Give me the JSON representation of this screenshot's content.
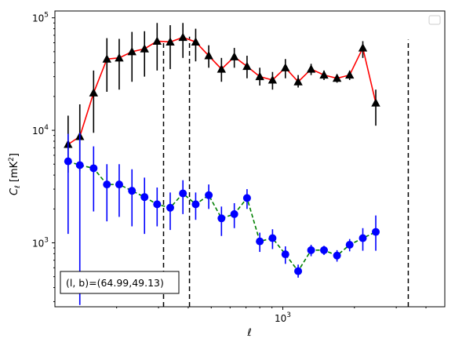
{
  "chart_data": {
    "type": "line",
    "xscale": "log",
    "yscale": "log",
    "xlim": [
      110,
      4800
    ],
    "ylim": [
      270,
      115000
    ],
    "xlabel": "ℓ",
    "ylabel": "C_ℓ  [mK²]",
    "x_ticks": [
      {
        "value": 1000,
        "label": "10^3"
      }
    ],
    "y_ticks": [
      {
        "value": 1000,
        "label": "10^3"
      },
      {
        "value": 10000,
        "label": "10^4"
      },
      {
        "value": 100000,
        "label": "10^5"
      }
    ],
    "grid": false,
    "legend": {
      "placement": "top-right",
      "entries": []
    },
    "annotation": {
      "text": "(l, b)=(64.99,49.13)",
      "placement": "bottom-left"
    },
    "vlines": [
      {
        "x": 315,
        "y": [
          270,
          62000
        ],
        "style": "dashed"
      },
      {
        "x": 405,
        "y": [
          270,
          68000
        ],
        "style": "dashed"
      },
      {
        "x": 3370,
        "y": [
          270,
          64000
        ],
        "style": "dashed"
      }
    ],
    "series": [
      {
        "color": "#ff0000",
        "line": "solid",
        "marker": "triangle",
        "marker_color": "#000000",
        "errorbar_color": "#000000",
        "points": [
          {
            "x": 125,
            "y": 7500,
            "lo": 4200,
            "hi": 13500
          },
          {
            "x": 140,
            "y": 8800,
            "lo": 4300,
            "hi": 17000
          },
          {
            "x": 160,
            "y": 21500,
            "lo": 9500,
            "hi": 34000
          },
          {
            "x": 182,
            "y": 43000,
            "lo": 22000,
            "hi": 66000
          },
          {
            "x": 205,
            "y": 44000,
            "lo": 23000,
            "hi": 65000
          },
          {
            "x": 232,
            "y": 50000,
            "lo": 27000,
            "hi": 75000
          },
          {
            "x": 262,
            "y": 53000,
            "lo": 30000,
            "hi": 76000
          },
          {
            "x": 296,
            "y": 62000,
            "lo": 34000,
            "hi": 90000
          },
          {
            "x": 336,
            "y": 61000,
            "lo": 35000,
            "hi": 86000
          },
          {
            "x": 380,
            "y": 67000,
            "lo": 44000,
            "hi": 90000
          },
          {
            "x": 430,
            "y": 61000,
            "lo": 41000,
            "hi": 80000
          },
          {
            "x": 488,
            "y": 46000,
            "lo": 36000,
            "hi": 57000
          },
          {
            "x": 552,
            "y": 35000,
            "lo": 27000,
            "hi": 44000
          },
          {
            "x": 625,
            "y": 45000,
            "lo": 36000,
            "hi": 54000
          },
          {
            "x": 707,
            "y": 37000,
            "lo": 29000,
            "hi": 46000
          },
          {
            "x": 800,
            "y": 30000,
            "lo": 25000,
            "hi": 36000
          },
          {
            "x": 905,
            "y": 28000,
            "lo": 23000,
            "hi": 33000
          },
          {
            "x": 1025,
            "y": 36000,
            "lo": 29000,
            "hi": 43000
          },
          {
            "x": 1160,
            "y": 27000,
            "lo": 24000,
            "hi": 31000
          },
          {
            "x": 1315,
            "y": 35000,
            "lo": 31000,
            "hi": 39000
          },
          {
            "x": 1490,
            "y": 31000,
            "lo": 28000,
            "hi": 34000
          },
          {
            "x": 1690,
            "y": 29000,
            "lo": 26500,
            "hi": 31500
          },
          {
            "x": 1910,
            "y": 31000,
            "lo": 28000,
            "hi": 34000
          },
          {
            "x": 2170,
            "y": 54000,
            "lo": 44000,
            "hi": 62000
          },
          {
            "x": 2460,
            "y": 17500,
            "lo": 11000,
            "hi": 23000
          }
        ]
      },
      {
        "color": "#008000",
        "line": "dashed",
        "marker": "circle",
        "marker_color": "#0000ff",
        "errorbar_color": "#0000ff",
        "points": [
          {
            "x": 125,
            "y": 5300,
            "lo": 1200,
            "hi": 9300
          },
          {
            "x": 140,
            "y": 4900,
            "lo": 280,
            "hi": 9500
          },
          {
            "x": 160,
            "y": 4600,
            "lo": 1900,
            "hi": 7200
          },
          {
            "x": 182,
            "y": 3300,
            "lo": 1550,
            "hi": 5000
          },
          {
            "x": 205,
            "y": 3300,
            "lo": 1700,
            "hi": 5000
          },
          {
            "x": 232,
            "y": 2900,
            "lo": 1400,
            "hi": 4500
          },
          {
            "x": 262,
            "y": 2550,
            "lo": 1200,
            "hi": 3800
          },
          {
            "x": 296,
            "y": 2200,
            "lo": 1400,
            "hi": 3100
          },
          {
            "x": 336,
            "y": 2050,
            "lo": 1300,
            "hi": 2800
          },
          {
            "x": 380,
            "y": 2750,
            "lo": 1800,
            "hi": 3600
          },
          {
            "x": 430,
            "y": 2200,
            "lo": 1600,
            "hi": 2800
          },
          {
            "x": 488,
            "y": 2650,
            "lo": 2000,
            "hi": 3300
          },
          {
            "x": 552,
            "y": 1650,
            "lo": 1150,
            "hi": 2100
          },
          {
            "x": 625,
            "y": 1800,
            "lo": 1350,
            "hi": 2250
          },
          {
            "x": 707,
            "y": 2500,
            "lo": 2000,
            "hi": 3000
          },
          {
            "x": 800,
            "y": 1030,
            "lo": 830,
            "hi": 1230
          },
          {
            "x": 905,
            "y": 1100,
            "lo": 880,
            "hi": 1320
          },
          {
            "x": 1025,
            "y": 790,
            "lo": 650,
            "hi": 930
          },
          {
            "x": 1160,
            "y": 560,
            "lo": 490,
            "hi": 640
          },
          {
            "x": 1315,
            "y": 860,
            "lo": 760,
            "hi": 960
          },
          {
            "x": 1490,
            "y": 860,
            "lo": 780,
            "hi": 940
          },
          {
            "x": 1690,
            "y": 770,
            "lo": 680,
            "hi": 860
          },
          {
            "x": 1910,
            "y": 960,
            "lo": 840,
            "hi": 1080
          },
          {
            "x": 2170,
            "y": 1100,
            "lo": 850,
            "hi": 1350
          },
          {
            "x": 2460,
            "y": 1250,
            "lo": 850,
            "hi": 1750
          }
        ]
      }
    ]
  }
}
